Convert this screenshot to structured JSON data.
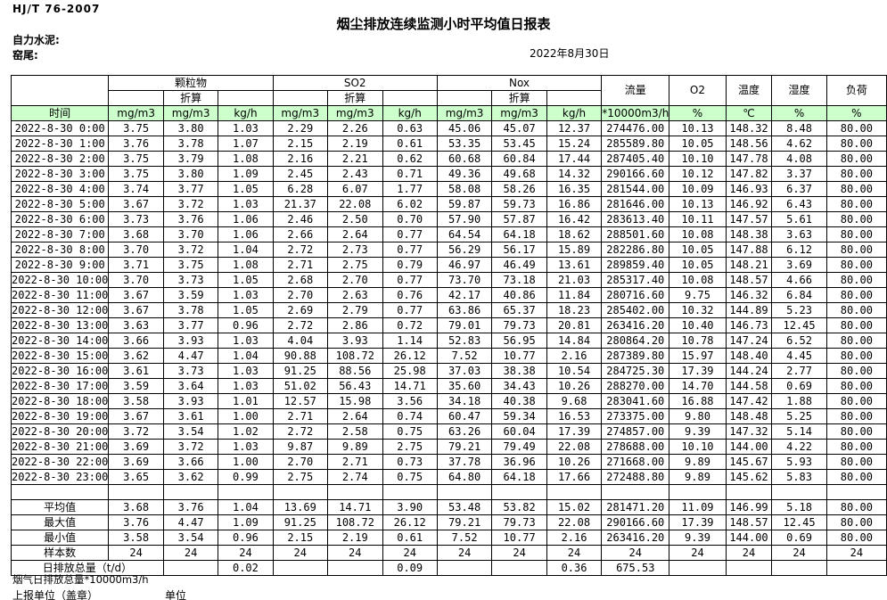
{
  "header": {
    "standard": "HJ/T  76-2007",
    "title": "烟尘排放连续监测小时平均值日报表",
    "company": "自力水泥:",
    "site": "窑尾:",
    "date": "2022年8月30日"
  },
  "colors": {
    "header_green": "#ccffcc",
    "border": "#000000"
  },
  "table": {
    "time_label": "时间",
    "converted_label": "折算",
    "groups": {
      "pm": "颗粒物",
      "so2": "SO2",
      "nox": "Nox",
      "flow": "流量",
      "o2": "O2",
      "temperature": "温度",
      "humidity": "湿度",
      "load": "负荷"
    },
    "units": [
      "mg/m3",
      "mg/m3",
      "kg/h",
      "mg/m3",
      "mg/m3",
      "kg/h",
      "mg/m3",
      "mg/m3",
      "kg/h",
      "*10000m3/h",
      "%",
      "℃",
      "%",
      "%"
    ],
    "rows": [
      {
        "time": "2022-8-30 0:00",
        "values": [
          "3.75",
          "3.80",
          "1.03",
          "2.29",
          "2.26",
          "0.63",
          "45.06",
          "45.07",
          "12.37",
          "274476.00",
          "10.13",
          "148.32",
          "8.48",
          "80.00"
        ]
      },
      {
        "time": "2022-8-30 1:00",
        "values": [
          "3.76",
          "3.78",
          "1.07",
          "2.15",
          "2.19",
          "0.61",
          "53.35",
          "53.45",
          "15.24",
          "285589.80",
          "10.05",
          "148.56",
          "4.62",
          "80.00"
        ]
      },
      {
        "time": "2022-8-30 2:00",
        "values": [
          "3.75",
          "3.79",
          "1.08",
          "2.16",
          "2.21",
          "0.62",
          "60.68",
          "60.84",
          "17.44",
          "287405.40",
          "10.10",
          "147.78",
          "4.08",
          "80.00"
        ]
      },
      {
        "time": "2022-8-30 3:00",
        "values": [
          "3.75",
          "3.80",
          "1.09",
          "2.45",
          "2.43",
          "0.71",
          "49.36",
          "49.68",
          "14.32",
          "290166.60",
          "10.12",
          "147.82",
          "3.37",
          "80.00"
        ]
      },
      {
        "time": "2022-8-30 4:00",
        "values": [
          "3.74",
          "3.77",
          "1.05",
          "6.28",
          "6.07",
          "1.77",
          "58.08",
          "58.26",
          "16.35",
          "281544.00",
          "10.09",
          "146.93",
          "6.37",
          "80.00"
        ]
      },
      {
        "time": "2022-8-30 5:00",
        "values": [
          "3.67",
          "3.72",
          "1.03",
          "21.37",
          "22.08",
          "6.02",
          "59.87",
          "59.73",
          "16.86",
          "281646.00",
          "10.13",
          "146.92",
          "6.43",
          "80.00"
        ]
      },
      {
        "time": "2022-8-30 6:00",
        "values": [
          "3.73",
          "3.76",
          "1.06",
          "2.46",
          "2.50",
          "0.70",
          "57.90",
          "57.87",
          "16.42",
          "283613.40",
          "10.11",
          "147.57",
          "5.61",
          "80.00"
        ]
      },
      {
        "time": "2022-8-30 7:00",
        "values": [
          "3.68",
          "3.70",
          "1.06",
          "2.66",
          "2.64",
          "0.77",
          "64.54",
          "64.18",
          "18.62",
          "288501.60",
          "10.08",
          "148.38",
          "3.63",
          "80.00"
        ]
      },
      {
        "time": "2022-8-30 8:00",
        "values": [
          "3.70",
          "3.72",
          "1.04",
          "2.72",
          "2.73",
          "0.77",
          "56.29",
          "56.17",
          "15.89",
          "282286.80",
          "10.05",
          "147.88",
          "6.12",
          "80.00"
        ]
      },
      {
        "time": "2022-8-30 9:00",
        "values": [
          "3.71",
          "3.75",
          "1.08",
          "2.71",
          "2.75",
          "0.79",
          "46.97",
          "46.49",
          "13.61",
          "289859.40",
          "10.05",
          "148.21",
          "3.69",
          "80.00"
        ]
      },
      {
        "time": "2022-8-30 10:00",
        "values": [
          "3.70",
          "3.73",
          "1.05",
          "2.68",
          "2.70",
          "0.77",
          "73.70",
          "73.18",
          "21.03",
          "285317.40",
          "10.08",
          "148.57",
          "4.66",
          "80.00"
        ]
      },
      {
        "time": "2022-8-30 11:00",
        "values": [
          "3.67",
          "3.59",
          "1.03",
          "2.70",
          "2.63",
          "0.76",
          "42.17",
          "40.86",
          "11.84",
          "280716.60",
          "9.75",
          "146.32",
          "6.84",
          "80.00"
        ]
      },
      {
        "time": "2022-8-30 12:00",
        "values": [
          "3.67",
          "3.78",
          "1.05",
          "2.69",
          "2.79",
          "0.77",
          "63.86",
          "65.37",
          "18.23",
          "285402.00",
          "10.32",
          "144.89",
          "5.23",
          "80.00"
        ]
      },
      {
        "time": "2022-8-30 13:00",
        "values": [
          "3.63",
          "3.77",
          "0.96",
          "2.72",
          "2.86",
          "0.72",
          "79.01",
          "79.73",
          "20.81",
          "263416.20",
          "10.40",
          "146.73",
          "12.45",
          "80.00"
        ]
      },
      {
        "time": "2022-8-30 14:00",
        "values": [
          "3.66",
          "3.93",
          "1.03",
          "4.04",
          "3.93",
          "1.14",
          "52.83",
          "56.95",
          "14.84",
          "280864.20",
          "10.78",
          "147.24",
          "6.52",
          "80.00"
        ]
      },
      {
        "time": "2022-8-30 15:00",
        "values": [
          "3.62",
          "4.47",
          "1.04",
          "90.88",
          "108.72",
          "26.12",
          "7.52",
          "10.77",
          "2.16",
          "287389.80",
          "15.97",
          "148.40",
          "4.45",
          "80.00"
        ]
      },
      {
        "time": "2022-8-30 16:00",
        "values": [
          "3.61",
          "3.73",
          "1.03",
          "91.25",
          "88.56",
          "25.98",
          "37.03",
          "38.38",
          "10.54",
          "284725.30",
          "17.39",
          "144.24",
          "2.77",
          "80.00"
        ]
      },
      {
        "time": "2022-8-30 17:00",
        "values": [
          "3.59",
          "3.64",
          "1.03",
          "51.02",
          "56.43",
          "14.71",
          "35.60",
          "34.43",
          "10.26",
          "288270.00",
          "14.70",
          "144.58",
          "0.69",
          "80.00"
        ]
      },
      {
        "time": "2022-8-30 18:00",
        "values": [
          "3.58",
          "3.93",
          "1.01",
          "12.57",
          "15.98",
          "3.56",
          "34.18",
          "40.38",
          "9.68",
          "283041.60",
          "16.88",
          "147.42",
          "1.88",
          "80.00"
        ]
      },
      {
        "time": "2022-8-30 19:00",
        "values": [
          "3.67",
          "3.61",
          "1.00",
          "2.71",
          "2.64",
          "0.74",
          "60.47",
          "59.34",
          "16.53",
          "273375.00",
          "9.80",
          "148.48",
          "5.25",
          "80.00"
        ]
      },
      {
        "time": "2022-8-30 20:00",
        "values": [
          "3.72",
          "3.54",
          "1.02",
          "2.72",
          "2.58",
          "0.75",
          "63.26",
          "60.04",
          "17.39",
          "274857.00",
          "9.39",
          "147.32",
          "5.14",
          "80.00"
        ]
      },
      {
        "time": "2022-8-30 21:00",
        "values": [
          "3.69",
          "3.72",
          "1.03",
          "9.87",
          "9.89",
          "2.75",
          "79.21",
          "79.49",
          "22.08",
          "278688.00",
          "10.10",
          "144.00",
          "4.22",
          "80.00"
        ]
      },
      {
        "time": "2022-8-30 22:00",
        "values": [
          "3.69",
          "3.66",
          "1.00",
          "2.70",
          "2.71",
          "0.73",
          "37.78",
          "36.96",
          "10.26",
          "271668.00",
          "9.89",
          "145.67",
          "5.93",
          "80.00"
        ]
      },
      {
        "time": "2022-8-30 23:00",
        "values": [
          "3.65",
          "3.62",
          "0.99",
          "2.75",
          "2.74",
          "0.75",
          "64.80",
          "64.18",
          "17.66",
          "272488.80",
          "9.89",
          "145.62",
          "5.83",
          "80.00"
        ]
      }
    ],
    "summary": [
      {
        "label": "平均值",
        "values": [
          "3.68",
          "3.76",
          "1.04",
          "13.69",
          "14.71",
          "3.90",
          "53.48",
          "53.82",
          "15.02",
          "281471.20",
          "11.09",
          "146.99",
          "5.18",
          "80.00"
        ]
      },
      {
        "label": "最大值",
        "values": [
          "3.76",
          "4.47",
          "1.09",
          "91.25",
          "108.72",
          "26.12",
          "79.21",
          "79.73",
          "22.08",
          "290166.60",
          "17.39",
          "148.57",
          "12.45",
          "80.00"
        ]
      },
      {
        "label": "最小值",
        "values": [
          "3.58",
          "3.54",
          "0.96",
          "2.15",
          "2.19",
          "0.61",
          "7.52",
          "10.77",
          "2.16",
          "263416.20",
          "9.39",
          "144.00",
          "0.69",
          "80.00"
        ]
      },
      {
        "label": "样本数",
        "values": [
          "24",
          "24",
          "24",
          "24",
          "24",
          "24",
          "24",
          "24",
          "24",
          "24",
          "24",
          "24",
          "24",
          "24"
        ]
      }
    ],
    "daily_total": {
      "label": "日排放总量（t/d）",
      "cells": [
        "",
        "0.02",
        "",
        "",
        "0.09",
        "",
        "",
        "0.36",
        "675.53",
        "",
        "",
        "",
        ""
      ]
    }
  },
  "footer": {
    "flow_note": "烟气日排放总量*10000m3/h",
    "report_unit": "上报单位（盖章）",
    "unit_label": "单位"
  }
}
